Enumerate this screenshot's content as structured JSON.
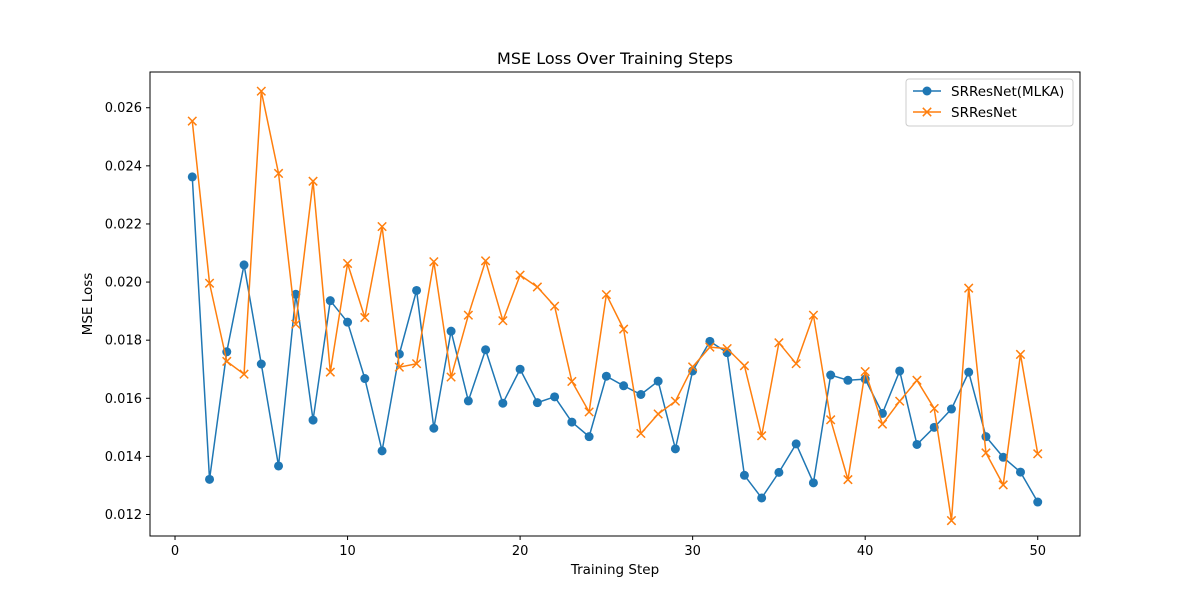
{
  "chart_data": {
    "type": "line",
    "title": "MSE Loss Over Training Steps",
    "xlabel": "Training Step",
    "ylabel": "MSE Loss",
    "xlim": [
      -1.45,
      52.45
    ],
    "ylim": [
      0.01126,
      0.02723
    ],
    "xticks": [
      0,
      10,
      20,
      30,
      40,
      50
    ],
    "yticks": [
      0.012,
      0.014,
      0.016,
      0.018,
      0.02,
      0.022,
      0.024,
      0.026
    ],
    "ytick_labels": [
      "0.012",
      "0.014",
      "0.016",
      "0.018",
      "0.020",
      "0.022",
      "0.024",
      "0.026"
    ],
    "grid": false,
    "legend_position": "top-right",
    "x": [
      1,
      2,
      3,
      4,
      5,
      6,
      7,
      8,
      9,
      10,
      11,
      12,
      13,
      14,
      15,
      16,
      17,
      18,
      19,
      20,
      21,
      22,
      23,
      24,
      25,
      26,
      27,
      28,
      29,
      30,
      31,
      32,
      33,
      34,
      35,
      36,
      37,
      38,
      39,
      40,
      41,
      42,
      43,
      44,
      45,
      46,
      47,
      48,
      49,
      50
    ],
    "series": [
      {
        "name": "SRResNet(MLKA)",
        "color": "#1f77b4",
        "marker": "circle",
        "values": [
          0.02362,
          0.01321,
          0.0176,
          0.02059,
          0.01718,
          0.01367,
          0.01958,
          0.01525,
          0.01936,
          0.01862,
          0.01668,
          0.01419,
          0.01752,
          0.01971,
          0.01497,
          0.01831,
          0.01591,
          0.01767,
          0.01583,
          0.017,
          0.01585,
          0.01605,
          0.01518,
          0.01468,
          0.01676,
          0.01643,
          0.01613,
          0.01659,
          0.01426,
          0.01694,
          0.01796,
          0.01757,
          0.01335,
          0.01257,
          0.01345,
          0.01443,
          0.01309,
          0.0168,
          0.01662,
          0.01666,
          0.01548,
          0.01694,
          0.01441,
          0.015,
          0.01563,
          0.0169,
          0.01468,
          0.01397,
          0.01346,
          0.01243
        ]
      },
      {
        "name": "SRResNet",
        "color": "#ff7f0e",
        "marker": "x",
        "values": [
          0.02554,
          0.01996,
          0.01727,
          0.01683,
          0.02657,
          0.02374,
          0.01855,
          0.02347,
          0.0169,
          0.02064,
          0.01878,
          0.02191,
          0.01707,
          0.01719,
          0.0207,
          0.01673,
          0.01886,
          0.02073,
          0.01867,
          0.02024,
          0.01983,
          0.01917,
          0.01658,
          0.01553,
          0.01957,
          0.01838,
          0.01479,
          0.01546,
          0.0159,
          0.01708,
          0.01776,
          0.01771,
          0.01712,
          0.01471,
          0.01791,
          0.01719,
          0.01886,
          0.01526,
          0.0132,
          0.01692,
          0.01511,
          0.0159,
          0.01662,
          0.01565,
          0.01179,
          0.01979,
          0.01412,
          0.01302,
          0.01751,
          0.01409
        ]
      }
    ]
  }
}
